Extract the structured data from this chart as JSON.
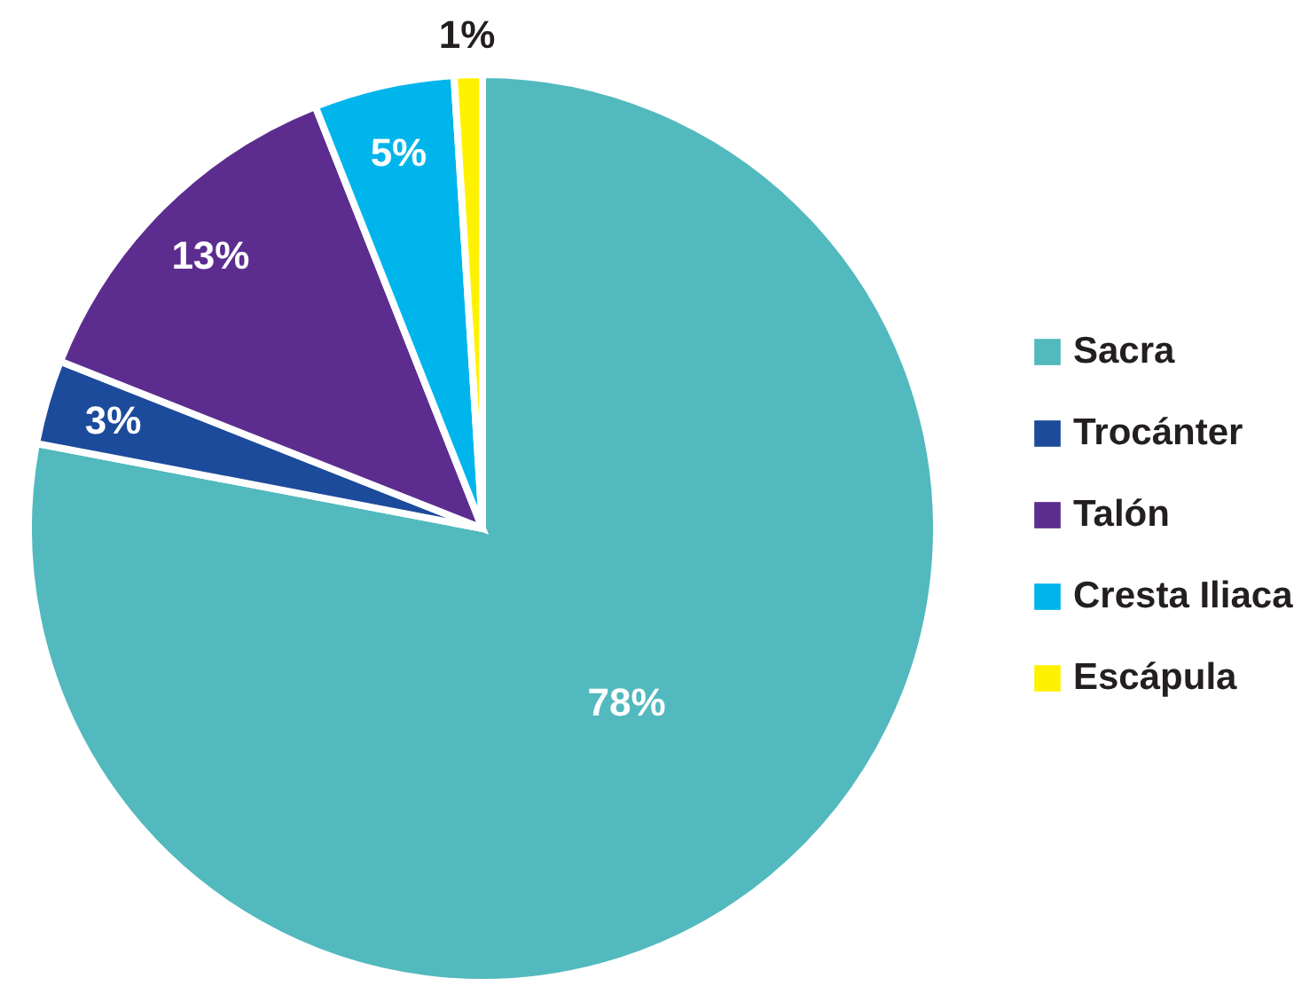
{
  "chart_data": {
    "type": "pie",
    "categories": [
      "Sacra",
      "Trocánter",
      "Talón",
      "Cresta Iliaca",
      "Escápula"
    ],
    "values": [
      78,
      3,
      13,
      5,
      1
    ],
    "colors": [
      "#52b9be",
      "#1d4b9c",
      "#5c2d8f",
      "#00b5ec",
      "#fff200"
    ],
    "value_labels": [
      "78%",
      "3%",
      "13%",
      "5%",
      "1%"
    ],
    "legend": "right"
  }
}
